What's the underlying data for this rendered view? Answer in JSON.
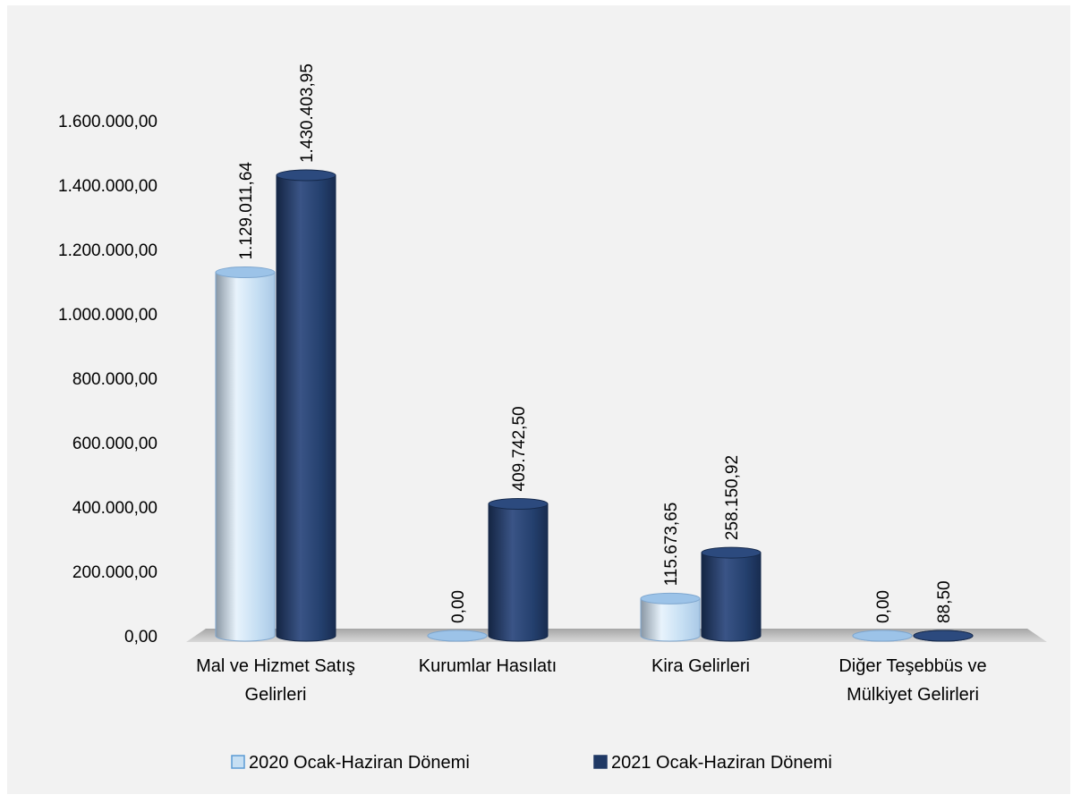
{
  "chart_data": {
    "type": "bar",
    "categories": [
      [
        "Mal ve Hizmet Satış",
        "Gelirleri"
      ],
      [
        "Kurumlar Hasılatı"
      ],
      [
        "Kira Gelirleri"
      ],
      [
        "Diğer Teşebbüs ve",
        "Mülkiyet Gelirleri"
      ]
    ],
    "series": [
      {
        "name": "2020 Ocak-Haziran Dönemi",
        "values": [
          1129011.64,
          0,
          115673.65,
          0
        ],
        "labels": [
          "1.129.011,64",
          "0,00",
          "115.673,65",
          "0,00"
        ],
        "color": "#c6dff3"
      },
      {
        "name": "2021 Ocak-Haziran Dönemi",
        "values": [
          1430403.95,
          409742.5,
          258150.92,
          88.5
        ],
        "labels": [
          "1.430.403,95",
          "409.742,50",
          "258.150,92",
          "88,50"
        ],
        "color": "#1f3864"
      }
    ],
    "yticks": [
      0,
      200000,
      400000,
      600000,
      800000,
      1000000,
      1200000,
      1400000,
      1600000
    ],
    "ytick_labels": [
      "0,00",
      "200.000,00",
      "400.000,00",
      "600.000,00",
      "800.000,00",
      "1.000.000,00",
      "1.200.000,00",
      "1.400.000,00",
      "1.600.000,00"
    ],
    "ylim": [
      0,
      1600000
    ],
    "grid": false,
    "legend_position": "bottom"
  }
}
